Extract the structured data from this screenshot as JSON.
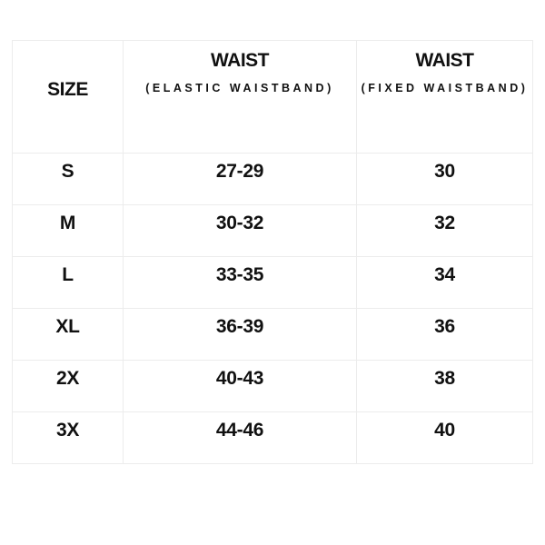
{
  "table": {
    "headers": [
      {
        "main": "SIZE",
        "sub": ""
      },
      {
        "main": "WAIST",
        "sub": "(ELASTIC WAISTBAND)"
      },
      {
        "main": "WAIST",
        "sub": "(FIXED WAISTBAND)"
      }
    ],
    "rows": [
      [
        "S",
        "27-29",
        "30"
      ],
      [
        "M",
        "30-32",
        "32"
      ],
      [
        "L",
        "33-35",
        "34"
      ],
      [
        "XL",
        "36-39",
        "36"
      ],
      [
        "2X",
        "40-43",
        "38"
      ],
      [
        "3X",
        "44-46",
        "40"
      ]
    ]
  }
}
